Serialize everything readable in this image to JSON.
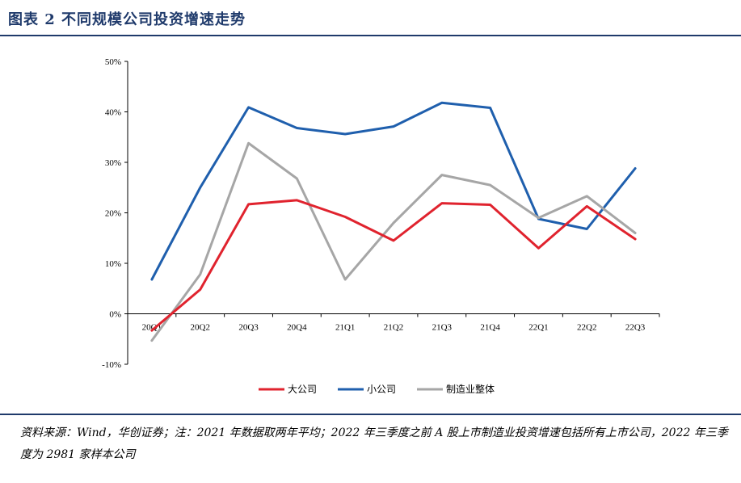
{
  "header": {
    "title": "图表 2   不同规模公司投资增速走势"
  },
  "footer": {
    "source": "资料来源：Wind，华创证券；注：2021 年数据取两年平均；2022 年三季度之前 A 股上市制造业投资增速包括所有上市公司，2022 年三季度为 2981 家样本公司"
  },
  "chart_data": {
    "type": "line",
    "title": "",
    "xlabel": "",
    "ylabel": "",
    "categories": [
      "20Q1",
      "20Q2",
      "20Q3",
      "20Q4",
      "21Q1",
      "21Q2",
      "21Q3",
      "21Q4",
      "22Q1",
      "22Q2",
      "22Q3"
    ],
    "ylim": [
      -10,
      50
    ],
    "yticks": [
      -10,
      0,
      10,
      20,
      30,
      40,
      50
    ],
    "ytick_labels": [
      "-10%",
      "0%",
      "10%",
      "20%",
      "30%",
      "40%",
      "50%"
    ],
    "grid": false,
    "legend_position": "bottom",
    "series": [
      {
        "name": "大公司",
        "color": "#e0232e",
        "values": [
          -3.3,
          4.8,
          21.7,
          22.5,
          19.2,
          14.5,
          21.9,
          21.6,
          13.0,
          21.3,
          14.8
        ]
      },
      {
        "name": "小公司",
        "color": "#1f5fad",
        "values": [
          6.8,
          25.0,
          40.9,
          36.8,
          35.6,
          37.1,
          41.8,
          40.8,
          18.8,
          16.8,
          28.8
        ]
      },
      {
        "name": "制造业整体",
        "color": "#a6a6a6",
        "values": [
          -5.3,
          7.8,
          33.8,
          26.8,
          6.8,
          18.0,
          27.5,
          25.5,
          19.0,
          23.3,
          16.0
        ]
      }
    ]
  }
}
